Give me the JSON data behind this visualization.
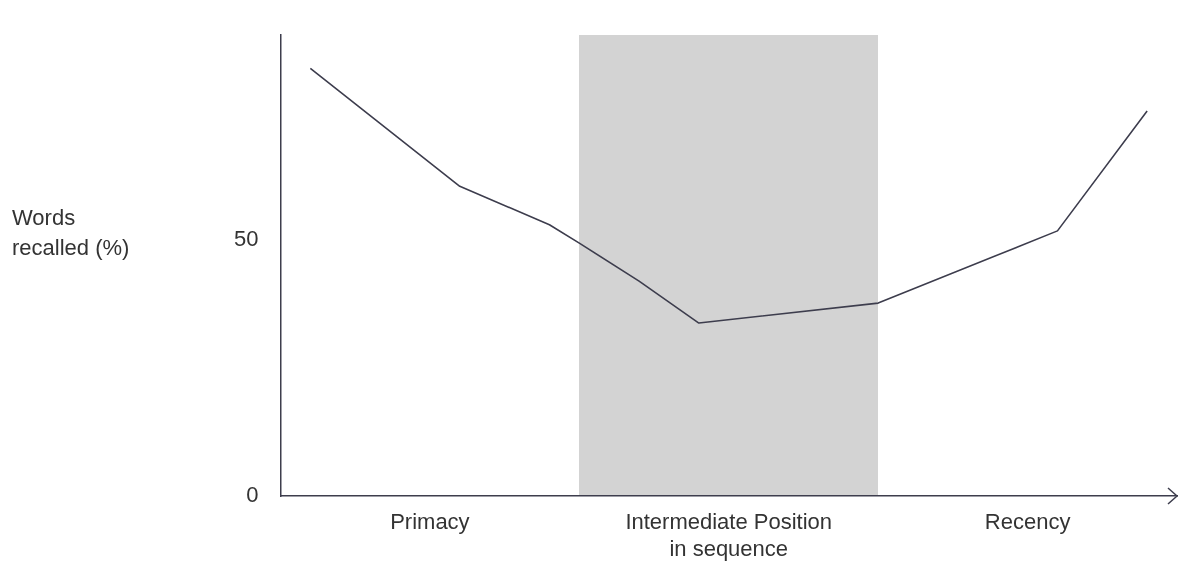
{
  "chart_data": {
    "type": "line",
    "ylabel": "Words recalled (%)",
    "categories": [
      null,
      null,
      null,
      null,
      null,
      "Primacy",
      null,
      null,
      null,
      null,
      null,
      null,
      null,
      null,
      null,
      "Intermediate Position in sequence",
      null,
      null,
      null,
      null,
      null,
      null,
      null,
      null,
      null,
      "Recency",
      null,
      null,
      null,
      null,
      null
    ],
    "ylim": [
      0,
      90
    ],
    "yticks": [
      0,
      50
    ],
    "series": [
      {
        "color": "#3d3d4d",
        "values": [
          null,
          83.5,
          null,
          null,
          null,
          null,
          60.5,
          null,
          null,
          53,
          49.4,
          null,
          42,
          null,
          33.8,
          null,
          null,
          null,
          null,
          null,
          37.7,
          null,
          null,
          null,
          null,
          null,
          51.8,
          null,
          null,
          75.2,
          null
        ]
      }
    ],
    "grid": false,
    "legend": false,
    "marker": "none"
  }
}
